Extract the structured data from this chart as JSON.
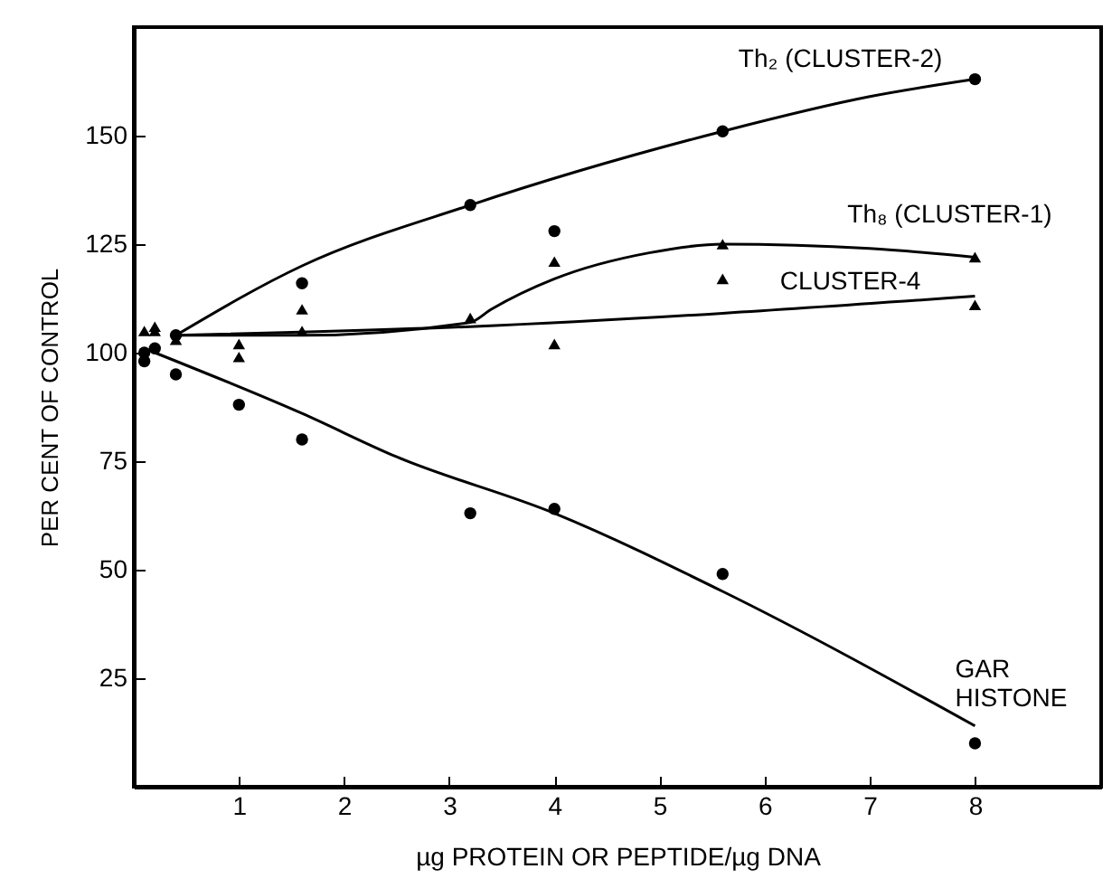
{
  "chart_data": {
    "type": "scatter",
    "xlabel": "µg PROTEIN OR PEPTIDE/µg DNA",
    "ylabel": "PER CENT OF CONTROL",
    "xlim": [
      0,
      9.2
    ],
    "ylim": [
      0,
      175
    ],
    "xticks": [
      1,
      2,
      3,
      4,
      5,
      6,
      7,
      8
    ],
    "yticks": [
      25,
      50,
      75,
      100,
      125,
      150
    ],
    "grid": false,
    "series": [
      {
        "type": "scatter",
        "marker": "circle",
        "color": "#000000",
        "x": [
          0.1,
          0.2,
          0.4,
          1.6,
          3.2,
          4,
          5.6,
          8
        ],
        "values": [
          98,
          101,
          104,
          116,
          134,
          128,
          151,
          163
        ]
      },
      {
        "type": "scatter",
        "marker": "triangle",
        "color": "#000000",
        "x": [
          0.1,
          0.2,
          0.4,
          1,
          1.6,
          3.2,
          4,
          5.6,
          8
        ],
        "values": [
          105,
          106,
          103,
          102,
          105,
          108,
          121,
          125,
          122
        ]
      },
      {
        "type": "scatter",
        "marker": "triangle",
        "color": "#000000",
        "x": [
          0.2,
          1,
          1.6,
          4,
          5.6,
          8
        ],
        "values": [
          105,
          99,
          110,
          102,
          117,
          111
        ]
      },
      {
        "type": "scatter",
        "marker": "circle",
        "color": "#000000",
        "x": [
          0.1,
          0.4,
          1,
          1.6,
          3.2,
          4,
          5.6,
          8
        ],
        "values": [
          100,
          95,
          88,
          80,
          63,
          64,
          49,
          10
        ]
      },
      {
        "type": "line",
        "name": "Th₂ (CLUSTER-2)",
        "color": "#000000",
        "x": [
          0.4,
          1.6,
          3.2,
          5.6,
          7,
          8
        ],
        "values": [
          104,
          120,
          134,
          151,
          159,
          163
        ]
      },
      {
        "type": "line",
        "name": "Th₈ (CLUSTER-1)",
        "color": "#000000",
        "x": [
          0.4,
          1.6,
          3.2,
          3.4,
          4,
          4.9,
          5.6,
          7,
          8
        ],
        "values": [
          104,
          104,
          107,
          110,
          117,
          123,
          125,
          124,
          122
        ]
      },
      {
        "type": "line",
        "name": "CLUSTER-4",
        "color": "#000000",
        "x": [
          0.4,
          3.2,
          8
        ],
        "values": [
          104,
          106,
          113
        ]
      },
      {
        "type": "line",
        "name": "GAR HISTONE",
        "color": "#000000",
        "x": [
          0.2,
          1.6,
          2.5,
          4,
          5.6,
          8
        ],
        "values": [
          100,
          86,
          76,
          63,
          45,
          14
        ]
      }
    ]
  }
}
